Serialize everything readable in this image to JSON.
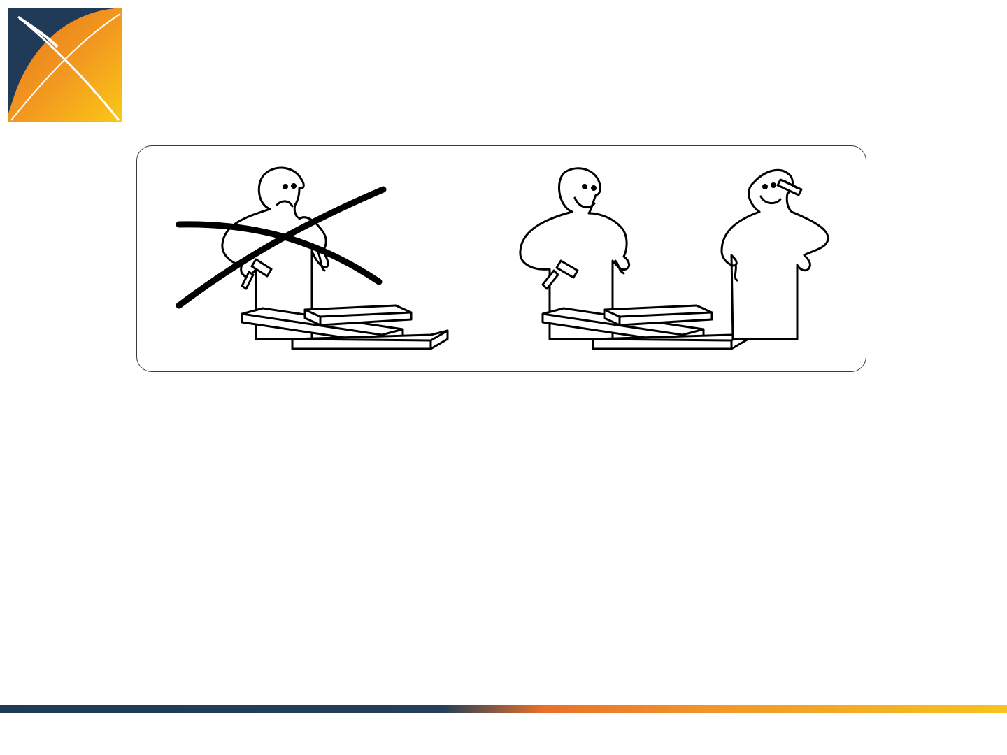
{
  "slide": {
    "logo": {
      "icon": "x-mark-logo-icon",
      "colors": {
        "navy": "#1f3b57",
        "orange": "#ed7d22",
        "yellow": "#f9c416"
      }
    },
    "illustration": {
      "panels": [
        {
          "name": "wrong-way",
          "figures": [
            "sad-person-with-hammer"
          ],
          "crossed_out": true
        },
        {
          "name": "right-way",
          "figures": [
            "happy-person-with-hammer",
            "happy-person-with-pencil"
          ],
          "crossed_out": false
        }
      ],
      "line_color": "#000000",
      "frame_color": "#3a3a3a"
    },
    "footer_bar": {
      "colors": [
        "#1f3b57",
        "#e9702a",
        "#f7c31e"
      ]
    }
  }
}
